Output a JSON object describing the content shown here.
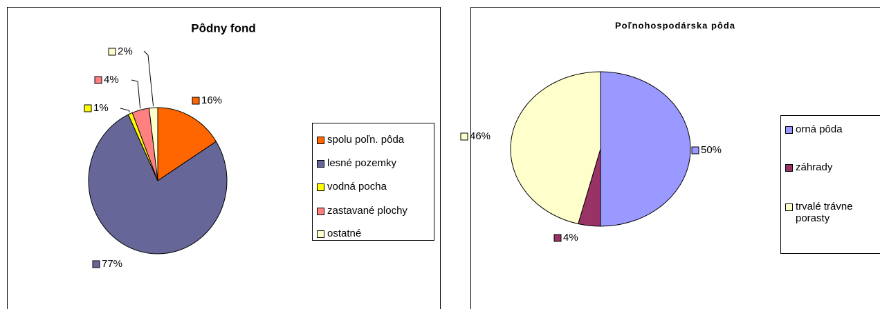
{
  "chart_data": [
    {
      "type": "pie",
      "title": "Pôdny fond",
      "categories": [
        "spolu poľn. pôda",
        "lesné pozemky",
        "vodná pocha",
        "zastavané plochy",
        "ostatné"
      ],
      "values": [
        16,
        77,
        1,
        4,
        2
      ],
      "value_labels": [
        "16%",
        "77%",
        "1%",
        "4%",
        "2%"
      ],
      "colors": [
        "#ff6600",
        "#666699",
        "#ffff00",
        "#ff8080",
        "#ffffcc"
      ],
      "legend": "right"
    },
    {
      "type": "pie",
      "title": "Poľnohospodárska pôda",
      "categories": [
        "orná pôda",
        "záhrady",
        "trvalé trávne porasty"
      ],
      "values": [
        50,
        4,
        46
      ],
      "value_labels": [
        "50%",
        "4%",
        "46%"
      ],
      "colors": [
        "#9999ff",
        "#993366",
        "#ffffcc"
      ],
      "legend": "right"
    }
  ]
}
